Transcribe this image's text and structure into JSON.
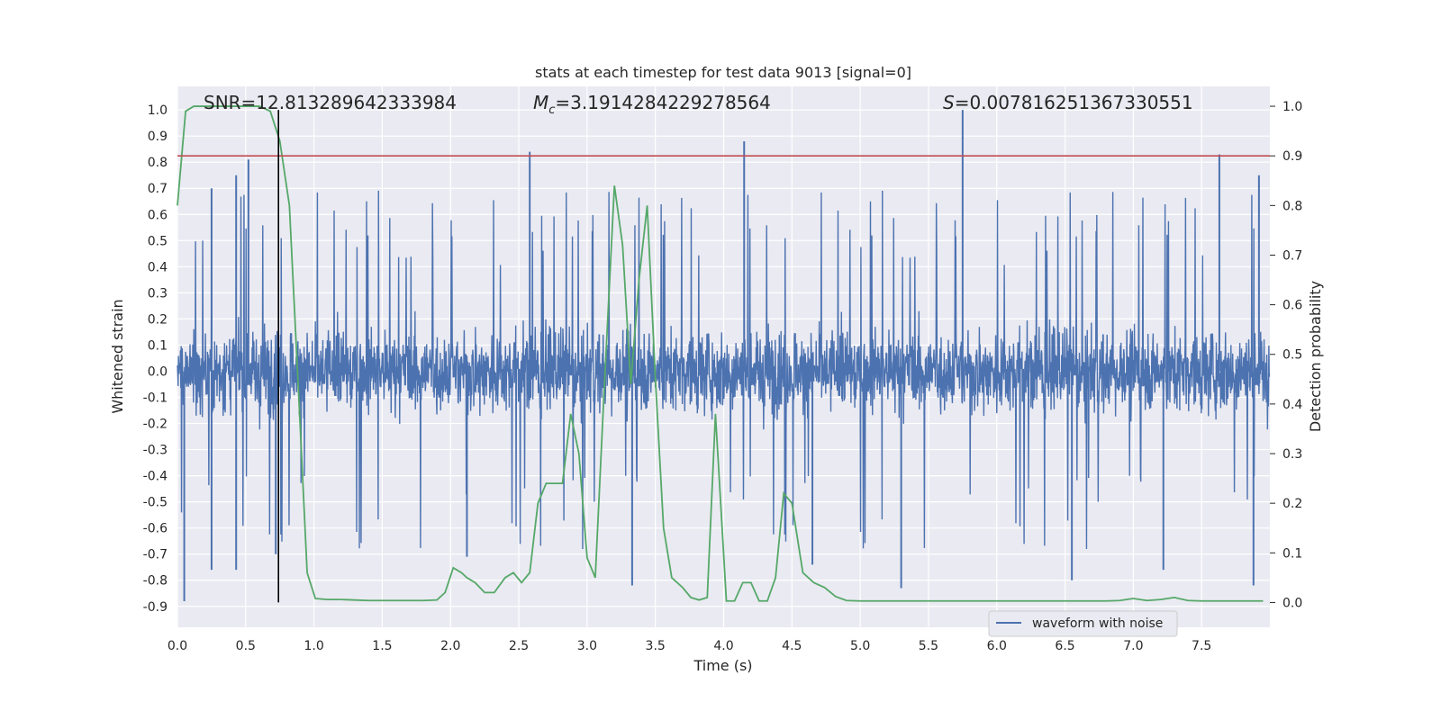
{
  "chart_data": {
    "type": "line",
    "title": "stats at each timestep for test data 9013 [signal=0]",
    "xlabel": "Time (s)",
    "ylabel_left": "Whitened strain",
    "ylabel_right": "Detection probability",
    "xlim": [
      0.0,
      8.0
    ],
    "ylim_left": [
      -0.98,
      1.09
    ],
    "ylim_right": [
      -0.05,
      1.04
    ],
    "x_ticks": [
      "0.0",
      "0.5",
      "1.0",
      "1.5",
      "2.0",
      "2.5",
      "3.0",
      "3.5",
      "4.0",
      "4.5",
      "5.0",
      "5.5",
      "6.0",
      "6.5",
      "7.0",
      "7.5"
    ],
    "y_left_ticks": [
      "1.0",
      "0.9",
      "0.8",
      "0.7",
      "0.6",
      "0.5",
      "0.4",
      "0.3",
      "0.2",
      "0.1",
      "0.0",
      "-0.1",
      "-0.2",
      "-0.3",
      "-0.4",
      "-0.5",
      "-0.6",
      "-0.7",
      "-0.8",
      "-0.9"
    ],
    "y_right_ticks": [
      "1.0",
      "0.9",
      "0.8",
      "0.7",
      "0.6",
      "0.5",
      "0.4",
      "0.3",
      "0.2",
      "0.1",
      "0.0"
    ],
    "annotations": {
      "snr": "SNR=12.813289642333984",
      "mc_symbol": "M",
      "mc_subscript": "c",
      "mc_value": "=3.1914284229278564",
      "s_symbol": "S",
      "s_value": "=0.007816251367330551"
    },
    "threshold_right": 0.9,
    "event_time": 0.74,
    "legend": {
      "label": "waveform with noise",
      "position": "lower right"
    },
    "grid": true,
    "series": [
      {
        "name": "waveform with noise",
        "axis": "left",
        "color": "#4c72b0",
        "style": "noise",
        "duration_s": 8.0,
        "typical_range": [
          -0.35,
          0.35
        ],
        "envelope": [
          -0.8,
          0.7
        ],
        "peaks": [
          {
            "x": 0.05,
            "y": -0.88
          },
          {
            "x": 0.25,
            "y": 0.7
          },
          {
            "x": 0.25,
            "y": -0.76
          },
          {
            "x": 0.43,
            "y": 0.75
          },
          {
            "x": 0.43,
            "y": -0.76
          },
          {
            "x": 0.52,
            "y": 0.81
          },
          {
            "x": 0.72,
            "y": -0.7
          },
          {
            "x": 2.12,
            "y": -0.71
          },
          {
            "x": 2.58,
            "y": 0.84
          },
          {
            "x": 3.33,
            "y": -0.82
          },
          {
            "x": 4.15,
            "y": 0.88
          },
          {
            "x": 4.65,
            "y": -0.74
          },
          {
            "x": 5.3,
            "y": -0.83
          },
          {
            "x": 5.75,
            "y": 1.0
          },
          {
            "x": 6.55,
            "y": -0.8
          },
          {
            "x": 7.22,
            "y": -0.76
          },
          {
            "x": 7.63,
            "y": 0.83
          },
          {
            "x": 7.88,
            "y": -0.82
          },
          {
            "x": 7.92,
            "y": 0.75
          }
        ]
      },
      {
        "name": "",
        "axis": "right",
        "color": "#55a868",
        "x": [
          0.0,
          0.06,
          0.12,
          0.2,
          0.3,
          0.4,
          0.5,
          0.6,
          0.68,
          0.75,
          0.82,
          0.9,
          0.95,
          1.01,
          1.1,
          1.2,
          1.3,
          1.4,
          1.5,
          1.6,
          1.7,
          1.8,
          1.9,
          1.96,
          2.02,
          2.08,
          2.12,
          2.18,
          2.25,
          2.32,
          2.4,
          2.46,
          2.52,
          2.58,
          2.64,
          2.7,
          2.76,
          2.82,
          2.88,
          2.94,
          3.0,
          3.06,
          3.12,
          3.2,
          3.26,
          3.32,
          3.38,
          3.44,
          3.5,
          3.56,
          3.62,
          3.7,
          3.76,
          3.82,
          3.88,
          3.94,
          4.02,
          4.08,
          4.14,
          4.2,
          4.26,
          4.32,
          4.38,
          4.44,
          4.5,
          4.58,
          4.66,
          4.74,
          4.82,
          4.9,
          5.0,
          5.2,
          5.5,
          5.8,
          6.0,
          6.3,
          6.6,
          6.8,
          6.9,
          7.0,
          7.1,
          7.2,
          7.3,
          7.4,
          7.5,
          7.6,
          7.8,
          7.95
        ],
        "y": [
          0.8,
          0.99,
          1.0,
          1.0,
          1.0,
          1.0,
          1.0,
          1.0,
          0.99,
          0.93,
          0.8,
          0.35,
          0.06,
          0.008,
          0.006,
          0.006,
          0.005,
          0.004,
          0.004,
          0.004,
          0.004,
          0.004,
          0.005,
          0.02,
          0.07,
          0.06,
          0.05,
          0.04,
          0.02,
          0.02,
          0.05,
          0.06,
          0.04,
          0.06,
          0.2,
          0.24,
          0.24,
          0.24,
          0.38,
          0.3,
          0.09,
          0.05,
          0.4,
          0.84,
          0.72,
          0.44,
          0.65,
          0.8,
          0.45,
          0.15,
          0.05,
          0.03,
          0.01,
          0.005,
          0.01,
          0.38,
          0.003,
          0.003,
          0.04,
          0.04,
          0.003,
          0.003,
          0.05,
          0.22,
          0.2,
          0.06,
          0.04,
          0.03,
          0.012,
          0.004,
          0.003,
          0.003,
          0.003,
          0.003,
          0.003,
          0.003,
          0.003,
          0.003,
          0.004,
          0.008,
          0.004,
          0.006,
          0.01,
          0.004,
          0.003,
          0.003,
          0.003,
          0.003
        ]
      }
    ]
  }
}
